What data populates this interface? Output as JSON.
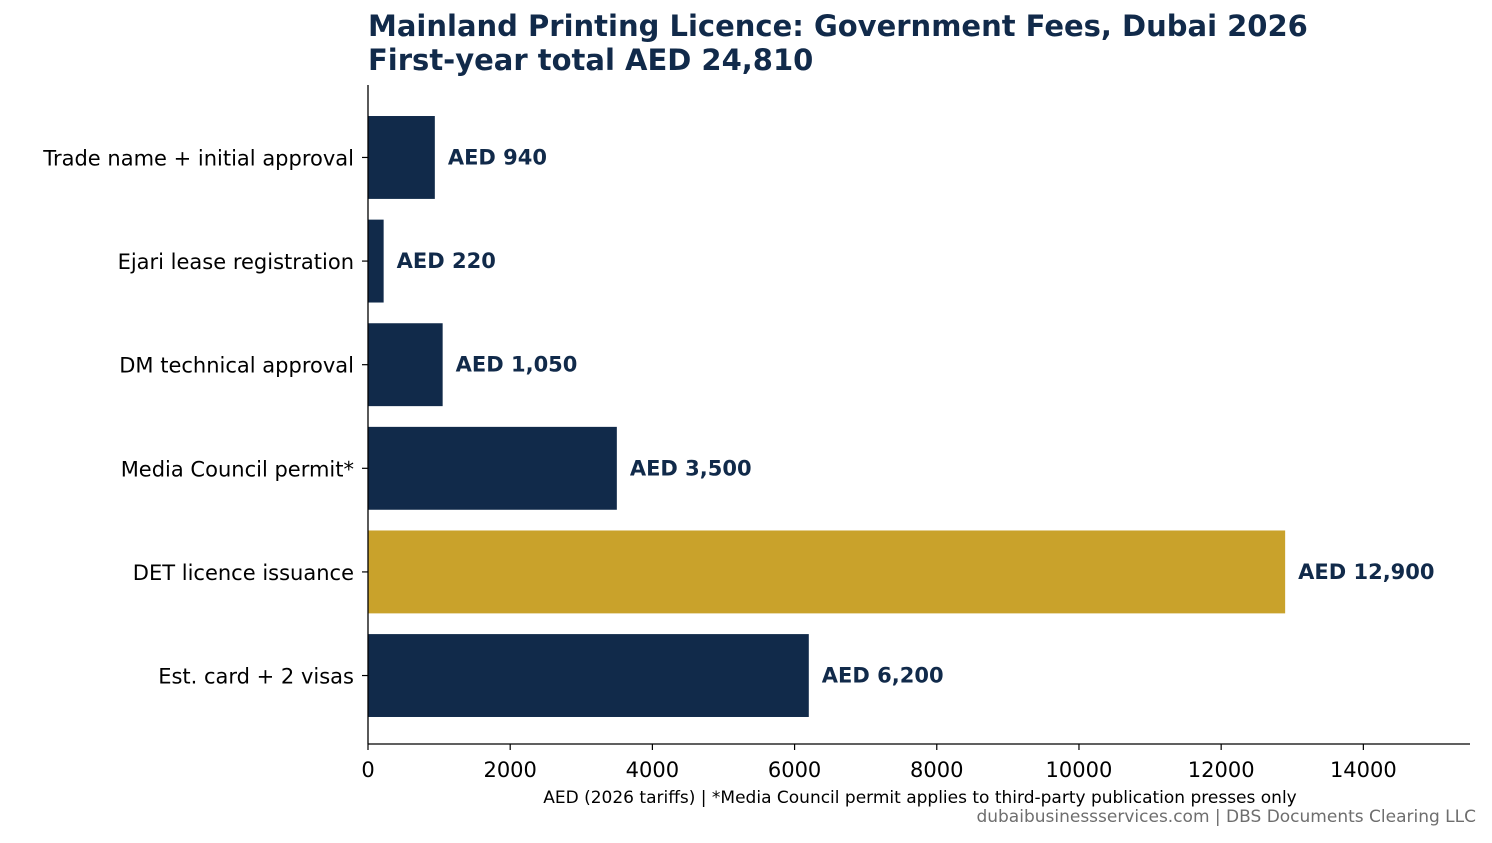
{
  "chart_data": {
    "type": "bar",
    "orientation": "horizontal",
    "title": "Mainland Printing Licence: Government Fees, Dubai 2026",
    "subtitle": "First-year total AED 24,810",
    "categories": [
      "Trade name + initial approval",
      "Ejari lease registration",
      "DM technical approval",
      "Media Council permit*",
      "DET licence issuance",
      "Est. card + 2 visas"
    ],
    "values": [
      940,
      220,
      1050,
      3500,
      12900,
      6200
    ],
    "data_labels": [
      "AED 940",
      "AED 220",
      "AED 1,050",
      "AED 3,500",
      "AED 12,900",
      "AED 6,200"
    ],
    "highlight_index": 4,
    "xlabel": "AED (2026 tariffs)  |  *Media Council permit applies to third-party publication presses only",
    "xlim": [
      0,
      15500
    ],
    "xticks": [
      0,
      2000,
      4000,
      6000,
      8000,
      10000,
      12000,
      14000
    ],
    "grid": false,
    "legend": "none",
    "colors": {
      "bar": "#112a4a",
      "highlight": "#c9a22b",
      "label": "#112a4a",
      "title": "#112a4a"
    }
  },
  "source_note": "dubaibusinessservices.com  |  DBS Documents Clearing LLC"
}
